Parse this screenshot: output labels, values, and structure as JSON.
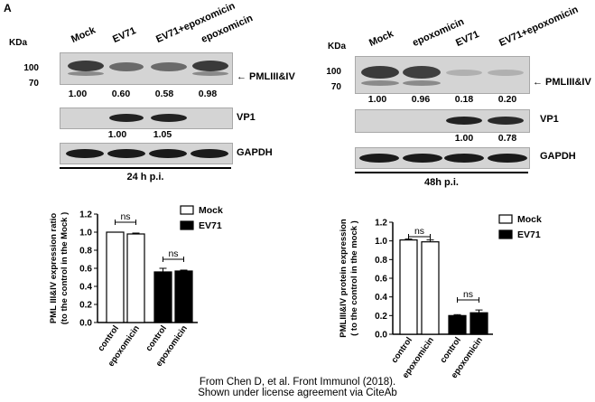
{
  "panel_label": "A",
  "kda_label": "KDa",
  "markers": [
    "100",
    "70"
  ],
  "left_blot": {
    "lanes": [
      "Mock",
      "EV71",
      "EV71+epoxomicin",
      "epoxomicin"
    ],
    "pml_label": "← PMLIII&IV",
    "pml_quant": [
      "1.00",
      "0.60",
      "0.58",
      "0.98"
    ],
    "vp1_label": "VP1",
    "vp1_quant": [
      "1.00",
      "1.05"
    ],
    "gapdh_label": "GAPDH",
    "timepoint": "24 h p.i."
  },
  "right_blot": {
    "lanes": [
      "Mock",
      "epoxomicin",
      "EV71",
      "EV71+epoxomicin"
    ],
    "pml_label": "← PMLIII&IV",
    "pml_quant": [
      "1.00",
      "0.96",
      "0.18",
      "0.20"
    ],
    "vp1_label": "VP1",
    "vp1_quant": [
      "1.00",
      "0.78"
    ],
    "gapdh_label": "GAPDH",
    "timepoint": "48h p.i."
  },
  "chart_data": [
    {
      "type": "bar",
      "ylabel": "PML III&IV expression ratio\n(to the control in the Mock )",
      "categories": [
        "control",
        "epoxomicin",
        "control",
        "epoxomicin"
      ],
      "values": [
        1.0,
        0.98,
        0.56,
        0.57
      ],
      "errors": [
        0.0,
        0.01,
        0.04,
        0.01
      ],
      "fills": [
        "#ffffff",
        "#ffffff",
        "#000000",
        "#000000"
      ],
      "ylim": [
        0,
        1.2
      ],
      "yticks": [
        "0.0",
        "0.2",
        "0.4",
        "0.6",
        "0.8",
        "1.0",
        "1.2"
      ],
      "legend": [
        {
          "name": "Mock",
          "fill": "#ffffff"
        },
        {
          "name": "EV71",
          "fill": "#000000"
        }
      ],
      "annotations": [
        "ns",
        "ns"
      ]
    },
    {
      "type": "bar",
      "ylabel": "PMLIII&IV protein expression\n( to the control in the mock )",
      "categories": [
        "control",
        "epoxomicin",
        "control",
        "epoxomicin"
      ],
      "values": [
        1.01,
        0.99,
        0.2,
        0.23
      ],
      "errors": [
        0.01,
        0.02,
        0.01,
        0.03
      ],
      "fills": [
        "#ffffff",
        "#ffffff",
        "#000000",
        "#000000"
      ],
      "ylim": [
        0,
        1.2
      ],
      "yticks": [
        "0.0",
        "0.2",
        "0.4",
        "0.6",
        "0.8",
        "1.0",
        "1.2"
      ],
      "legend": [
        {
          "name": "Mock",
          "fill": "#ffffff"
        },
        {
          "name": "EV71",
          "fill": "#000000"
        }
      ],
      "annotations": [
        "ns",
        "ns"
      ]
    }
  ],
  "credit": {
    "line1": "From Chen D, et al. Front Immunol (2018).",
    "line2": "Shown under license agreement via CiteAb"
  }
}
